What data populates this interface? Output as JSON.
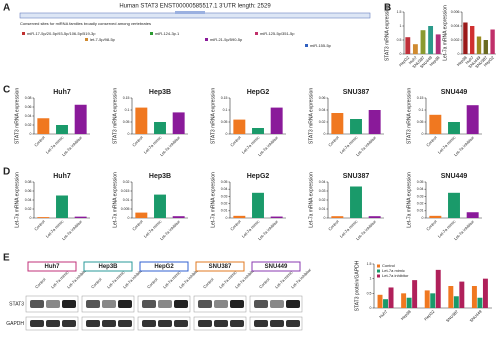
{
  "panel_labels": [
    "A",
    "B",
    "C",
    "D",
    "E"
  ],
  "sequence": {
    "title": "Human STAT3 ENST00000585517.1 3'UTR length: 2529",
    "subtitle": "Conserved sites for miRNA families broadly conserved among vertebrates",
    "sites": [
      "miR-17-5p/20-5p/93-5p/106-5p/519-3p",
      "let-7-5p/98-5p",
      "miR-124-3p.1",
      "miR-21-5p/590-5p",
      "miR-125-5p/351-5p",
      "miR-155-5p"
    ]
  },
  "blot": {
    "cell_lines": [
      "Huh7",
      "Hep3B",
      "HepG2",
      "SNU387",
      "SNU449"
    ],
    "lanes": [
      "Control",
      "Let-7a mimic",
      "Let-7a inhibitor"
    ],
    "rows": [
      "STAT3",
      "GAPDH"
    ]
  },
  "chart_data": [
    {
      "type": "bar",
      "y_label": "STAT3 mRNA expression",
      "categories": [
        "HepG2",
        "Huh7",
        "SNU387",
        "SNU449",
        "Hep3B"
      ],
      "values": [
        0.6,
        0.35,
        0.85,
        1,
        0.7
      ],
      "colors": [
        "#c0303a",
        "#d08a30",
        "#8a9a30",
        "#2a9a8a",
        "#b0307a"
      ],
      "ylim": [
        0,
        1.5
      ],
      "yticks": [
        0,
        0.5,
        1,
        1.5
      ]
    },
    {
      "type": "bar",
      "y_label": "Let-7a mRNA expression",
      "categories": [
        "Hep3B",
        "Huh7",
        "SNU449",
        "SNU387",
        "HepG2"
      ],
      "values": [
        0.0045,
        0.004,
        0.0025,
        0.002,
        0.0035
      ],
      "colors": [
        "#9a1a1a",
        "#d03030",
        "#9a8a20",
        "#6a6a20",
        "#c0306a"
      ],
      "ylim": [
        0,
        0.006
      ],
      "yticks": [
        0,
        0.002,
        0.004,
        0.006
      ]
    },
    {
      "type": "bar",
      "title": "Huh7",
      "y_label": "STAT3 mRNA expression",
      "categories": [
        "Control",
        "Let-7a mimic",
        "Let-7a inhibitor"
      ],
      "values": [
        0.035,
        0.02,
        0.065
      ],
      "colors": [
        "#f07820",
        "#1a9a6a",
        "#8a1a9a"
      ],
      "ylim": [
        0,
        0.08
      ],
      "yticks": [
        0,
        0.02,
        0.04,
        0.06,
        0.08
      ]
    },
    {
      "type": "bar",
      "title": "Hep3B",
      "y_label": "STAT3 mRNA expression",
      "categories": [
        "Control",
        "Let-7a mimic",
        "Let-7a inhibitor"
      ],
      "values": [
        0.11,
        0.05,
        0.09
      ],
      "colors": [
        "#f07820",
        "#1a9a6a",
        "#8a1a9a"
      ],
      "ylim": [
        0,
        0.15
      ],
      "yticks": [
        0,
        0.05,
        0.1,
        0.15
      ]
    },
    {
      "type": "bar",
      "title": "HepG2",
      "y_label": "STAT3 mRNA expression",
      "categories": [
        "Control",
        "Let-7a mimic",
        "Let-7a inhibitor"
      ],
      "values": [
        0.06,
        0.025,
        0.11
      ],
      "colors": [
        "#f07820",
        "#1a9a6a",
        "#8a1a9a"
      ],
      "ylim": [
        0,
        0.15
      ],
      "yticks": [
        0,
        0.05,
        0.1,
        0.15
      ]
    },
    {
      "type": "bar",
      "title": "SNU387",
      "y_label": "STAT3 mRNA expression",
      "categories": [
        "Control",
        "Let-7a mimic",
        "Let-7a inhibitor"
      ],
      "values": [
        0.035,
        0.025,
        0.04
      ],
      "colors": [
        "#f07820",
        "#1a9a6a",
        "#8a1a9a"
      ],
      "ylim": [
        0,
        0.06
      ],
      "yticks": [
        0,
        0.02,
        0.04,
        0.06
      ]
    },
    {
      "type": "bar",
      "title": "SNU449",
      "y_label": "STAT3 mRNA expression",
      "categories": [
        "Control",
        "Let-7a mimic",
        "Let-7a inhibitor"
      ],
      "values": [
        0.08,
        0.05,
        0.12
      ],
      "colors": [
        "#f07820",
        "#1a9a6a",
        "#8a1a9a"
      ],
      "ylim": [
        0,
        0.15
      ],
      "yticks": [
        0,
        0.05,
        0.1,
        0.15
      ]
    },
    {
      "type": "bar",
      "title": "Huh7",
      "y_label": "Let-7a mRNA expression",
      "categories": [
        "Control",
        "Let-7a mimic",
        "Let-7a inhibitor"
      ],
      "values": [
        0.002,
        0.05,
        0.003
      ],
      "colors": [
        "#f07820",
        "#1a9a6a",
        "#8a1a9a"
      ],
      "ylim": [
        0,
        0.08
      ],
      "yticks": [
        0,
        0.02,
        0.04,
        0.06,
        0.08
      ]
    },
    {
      "type": "bar",
      "title": "Hep3B",
      "y_label": "Let-7a mRNA expression",
      "categories": [
        "Control",
        "Let-7a mimic",
        "Let-7a inhibitor"
      ],
      "values": [
        0.003,
        0.013,
        0.001
      ],
      "colors": [
        "#f07820",
        "#1a9a6a",
        "#8a1a9a"
      ],
      "ylim": [
        0,
        0.02
      ],
      "yticks": [
        0,
        0.005,
        0.01,
        0.015,
        0.02
      ]
    },
    {
      "type": "bar",
      "title": "HepG2",
      "y_label": "Let-7a mRNA expression",
      "categories": [
        "Control",
        "Let-7a mimic",
        "Let-7a inhibitor"
      ],
      "values": [
        0.003,
        0.035,
        0.002
      ],
      "colors": [
        "#f07820",
        "#1a9a6a",
        "#8a1a9a"
      ],
      "ylim": [
        0,
        0.05
      ],
      "yticks": [
        0,
        0.01,
        0.02,
        0.03,
        0.04,
        0.05
      ]
    },
    {
      "type": "bar",
      "title": "SNU387",
      "y_label": "Let-7a mRNA expression",
      "categories": [
        "Control",
        "Let-7a mimic",
        "Let-7a inhibitor"
      ],
      "values": [
        0.002,
        0.035,
        0.002
      ],
      "colors": [
        "#f07820",
        "#1a9a6a",
        "#8a1a9a"
      ],
      "ylim": [
        0,
        0.04
      ],
      "yticks": [
        0,
        0.01,
        0.02,
        0.03,
        0.04
      ]
    },
    {
      "type": "bar",
      "title": "SNU449",
      "y_label": "Let-7a mRNA expression",
      "categories": [
        "Control",
        "Let-7a mimic",
        "Let-7a inhibitor"
      ],
      "values": [
        0.003,
        0.035,
        0.008
      ],
      "colors": [
        "#f07820",
        "#1a9a6a",
        "#8a1a9a"
      ],
      "ylim": [
        0,
        0.05
      ],
      "yticks": [
        0,
        0.01,
        0.02,
        0.03,
        0.04,
        0.05
      ]
    },
    {
      "type": "grouped_bar",
      "y_label": "STAT3 protein/GAPDH",
      "categories": [
        "Huh7",
        "Hep3B",
        "HepG2",
        "SNU387",
        "SNU449"
      ],
      "series": [
        {
          "name": "Control",
          "color": "#f07820",
          "values": [
            0.45,
            0.5,
            0.6,
            0.75,
            0.75
          ]
        },
        {
          "name": "Let-7a mimic",
          "color": "#1a9a6a",
          "values": [
            0.3,
            0.35,
            0.5,
            0.4,
            0.35
          ]
        },
        {
          "name": "Let-7a inhibitor",
          "color": "#b0205a",
          "values": [
            0.7,
            0.95,
            1.3,
            0.9,
            1
          ]
        }
      ],
      "ylim": [
        0,
        1.5
      ],
      "yticks": [
        0,
        0.5,
        1,
        1.5
      ],
      "legend": "top-left"
    }
  ]
}
